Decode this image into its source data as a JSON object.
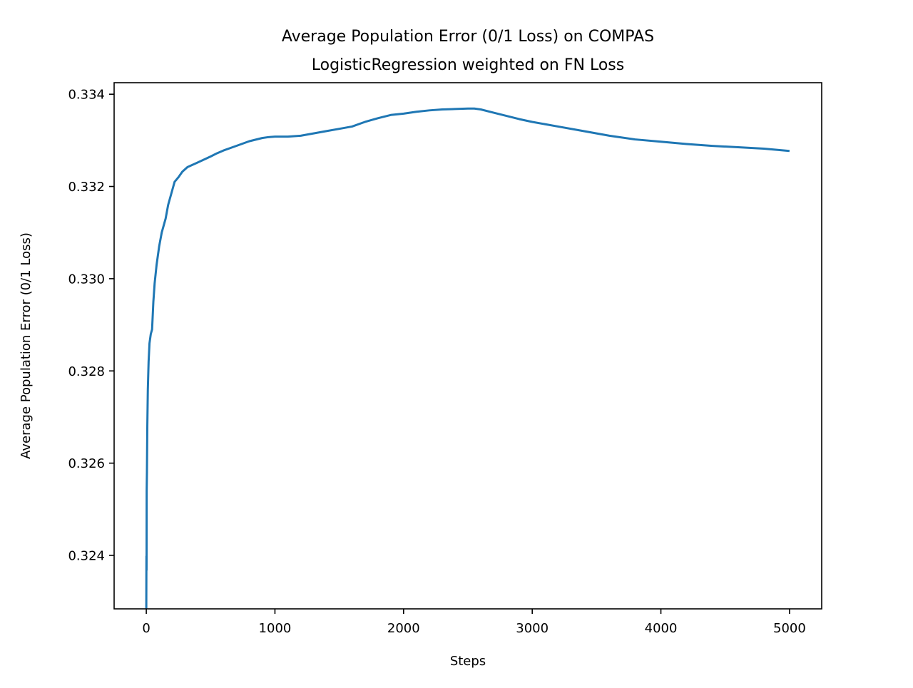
{
  "chart_data": {
    "type": "line",
    "title": "Average Population Error (0/1 Loss) on COMPAS",
    "subtitle": "LogisticRegression weighted on FN Loss",
    "xlabel": "Steps",
    "ylabel": "Average Population Error (0/1 Loss)",
    "xlim": [
      -250,
      5250
    ],
    "ylim": [
      0.32284,
      0.33425
    ],
    "xticks": [
      0,
      1000,
      2000,
      3000,
      4000,
      5000
    ],
    "xtick_labels": [
      "0",
      "1000",
      "2000",
      "3000",
      "4000",
      "5000"
    ],
    "yticks": [
      0.324,
      0.326,
      0.328,
      0.33,
      0.332,
      0.334
    ],
    "ytick_labels": [
      "0.324",
      "0.326",
      "0.328",
      "0.330",
      "0.332",
      "0.334"
    ],
    "grid": false,
    "series": [
      {
        "name": "Average Population Error",
        "color": "#1f77b4",
        "x": [
          0,
          1,
          2,
          3,
          5,
          8,
          12,
          18,
          25,
          35,
          45,
          55,
          65,
          80,
          100,
          120,
          150,
          170,
          200,
          220,
          250,
          280,
          320,
          400,
          500,
          550,
          600,
          700,
          800,
          900,
          950,
          1000,
          1100,
          1200,
          1300,
          1400,
          1500,
          1600,
          1700,
          1800,
          1900,
          2000,
          2100,
          2200,
          2300,
          2400,
          2500,
          2550,
          2600,
          2700,
          2800,
          2900,
          3000,
          3200,
          3400,
          3600,
          3800,
          4000,
          4200,
          4400,
          4600,
          4800,
          5000
        ],
        "y": [
          0.32285,
          0.32398,
          0.32368,
          0.3254,
          0.3258,
          0.3268,
          0.3276,
          0.3282,
          0.3286,
          0.3288,
          0.3289,
          0.3295,
          0.3299,
          0.3303,
          0.3307,
          0.331,
          0.3313,
          0.3316,
          0.3319,
          0.3321,
          0.3322,
          0.33232,
          0.33242,
          0.33252,
          0.33265,
          0.33272,
          0.33278,
          0.33288,
          0.33298,
          0.33305,
          0.33307,
          0.33308,
          0.33308,
          0.3331,
          0.33315,
          0.3332,
          0.33325,
          0.3333,
          0.3334,
          0.33348,
          0.33355,
          0.33358,
          0.33362,
          0.33365,
          0.33367,
          0.33368,
          0.33369,
          0.33369,
          0.33367,
          0.3336,
          0.33353,
          0.33346,
          0.3334,
          0.3333,
          0.3332,
          0.3331,
          0.33302,
          0.33297,
          0.33292,
          0.33288,
          0.33285,
          0.33282,
          0.33277
        ]
      }
    ]
  }
}
